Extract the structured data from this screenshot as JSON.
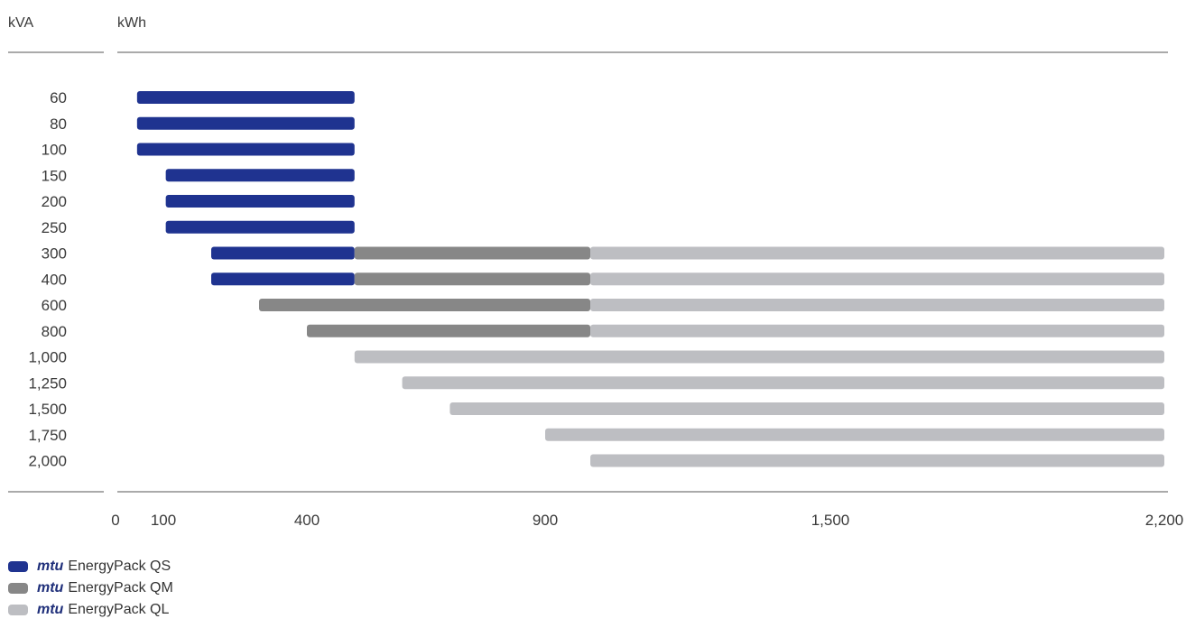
{
  "chart_data": {
    "type": "bar",
    "orientation": "horizontal",
    "y_unit_label": "kVA",
    "x_unit_label": "kWh",
    "categories": [
      "60",
      "80",
      "100",
      "150",
      "200",
      "250",
      "300",
      "400",
      "600",
      "800",
      "1,000",
      "1,250",
      "1,500",
      "1,750",
      "2,000"
    ],
    "x_ticks": [
      {
        "value": 0,
        "label": "0"
      },
      {
        "value": 100,
        "label": "100"
      },
      {
        "value": 400,
        "label": "400"
      },
      {
        "value": 900,
        "label": "900"
      },
      {
        "value": 1500,
        "label": "1,500"
      },
      {
        "value": 2200,
        "label": "2,200"
      }
    ],
    "xlim": [
      0,
      2200
    ],
    "series": [
      {
        "brand": "mtu",
        "name": "EnergyPack QS",
        "color": "#1f3390",
        "ranges": [
          {
            "category": "60",
            "start": 45,
            "end": 500
          },
          {
            "category": "80",
            "start": 45,
            "end": 500
          },
          {
            "category": "100",
            "start": 45,
            "end": 500
          },
          {
            "category": "150",
            "start": 105,
            "end": 500
          },
          {
            "category": "200",
            "start": 105,
            "end": 500
          },
          {
            "category": "250",
            "start": 105,
            "end": 500
          },
          {
            "category": "300",
            "start": 200,
            "end": 500
          },
          {
            "category": "400",
            "start": 200,
            "end": 500
          }
        ]
      },
      {
        "brand": "mtu",
        "name": "EnergyPack QM",
        "color": "#878787",
        "ranges": [
          {
            "category": "300",
            "start": 500,
            "end": 995
          },
          {
            "category": "400",
            "start": 500,
            "end": 995
          },
          {
            "category": "600",
            "start": 300,
            "end": 995
          },
          {
            "category": "800",
            "start": 400,
            "end": 995
          }
        ]
      },
      {
        "brand": "mtu",
        "name": "EnergyPack QL",
        "color": "#bdbec2",
        "ranges": [
          {
            "category": "300",
            "start": 995,
            "end": 2200
          },
          {
            "category": "400",
            "start": 995,
            "end": 2200
          },
          {
            "category": "600",
            "start": 995,
            "end": 2200
          },
          {
            "category": "800",
            "start": 995,
            "end": 2200
          },
          {
            "category": "1,000",
            "start": 500,
            "end": 2200
          },
          {
            "category": "1,250",
            "start": 600,
            "end": 2200
          },
          {
            "category": "1,500",
            "start": 700,
            "end": 2200
          },
          {
            "category": "1,750",
            "start": 900,
            "end": 2200
          },
          {
            "category": "2,000",
            "start": 995,
            "end": 2200
          }
        ]
      }
    ]
  }
}
